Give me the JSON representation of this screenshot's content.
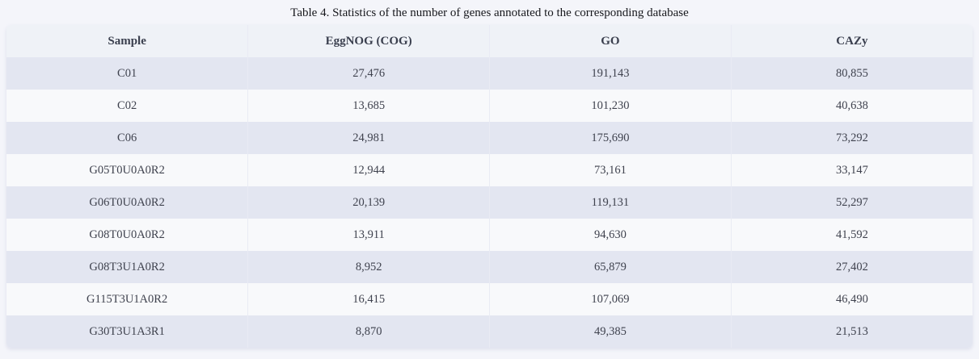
{
  "title": "Table 4. Statistics of the number of genes annotated to the corresponding database",
  "table": {
    "columns": [
      "Sample",
      "EggNOG (COG)",
      "GO",
      "CAZy"
    ],
    "rows": [
      {
        "sample": "C01",
        "eggnog_cog": "27,476",
        "go": "191,143",
        "cazy": "80,855"
      },
      {
        "sample": "C02",
        "eggnog_cog": "13,685",
        "go": "101,230",
        "cazy": "40,638"
      },
      {
        "sample": "C06",
        "eggnog_cog": "24,981",
        "go": "175,690",
        "cazy": "73,292"
      },
      {
        "sample": "G05T0U0A0R2",
        "eggnog_cog": "12,944",
        "go": "73,161",
        "cazy": "33,147"
      },
      {
        "sample": "G06T0U0A0R2",
        "eggnog_cog": "20,139",
        "go": "119,131",
        "cazy": "52,297"
      },
      {
        "sample": "G08T0U0A0R2",
        "eggnog_cog": "13,911",
        "go": "94,630",
        "cazy": "41,592"
      },
      {
        "sample": "G08T3U1A0R2",
        "eggnog_cog": "8,952",
        "go": "65,879",
        "cazy": "27,402"
      },
      {
        "sample": "G115T3U1A0R2",
        "eggnog_cog": "16,415",
        "go": "107,069",
        "cazy": "46,490"
      },
      {
        "sample": "G30T3U1A3R1",
        "eggnog_cog": "8,870",
        "go": "49,385",
        "cazy": "21,513"
      }
    ]
  },
  "colors": {
    "page_background": "#f4f5fa",
    "header_background": "#eff2f7",
    "row_odd_background": "#e3e6f1",
    "row_even_background": "#f8f9fb",
    "divider": "#e9ebf4",
    "header_text": "#3a3f4e",
    "cell_text": "#3f424e",
    "title_text": "#17181d"
  }
}
